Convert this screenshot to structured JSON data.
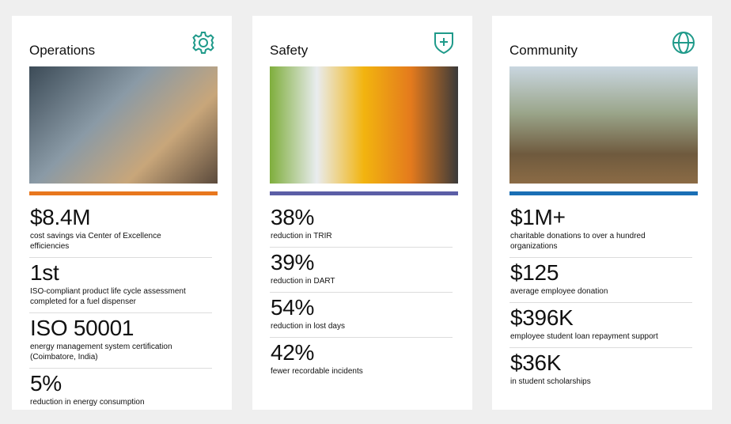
{
  "cards": [
    {
      "title": "Operations",
      "stats": [
        {
          "value": "$8.4M",
          "label": "cost savings via Center of Excellence efficiencies"
        },
        {
          "value": "1st",
          "label": "ISO-compliant product life cycle assessment completed for a fuel dispenser"
        },
        {
          "value": "ISO 50001",
          "label": "energy management system certification (Coimbatore, India)"
        },
        {
          "value": "5%",
          "label": "reduction in energy consumption"
        }
      ]
    },
    {
      "title": "Safety",
      "stats": [
        {
          "value": "38%",
          "label": "reduction in TRIR"
        },
        {
          "value": "39%",
          "label": "reduction in DART"
        },
        {
          "value": "54%",
          "label": "reduction in lost days"
        },
        {
          "value": "42%",
          "label": "fewer recordable incidents"
        }
      ]
    },
    {
      "title": "Community",
      "stats": [
        {
          "value": "$1M+",
          "label": "charitable donations to over a hundred organizations"
        },
        {
          "value": "$125",
          "label": "average employee donation"
        },
        {
          "value": "$396K",
          "label": "employee student loan repayment support"
        },
        {
          "value": "$36K",
          "label": "in student scholarships"
        }
      ]
    }
  ]
}
